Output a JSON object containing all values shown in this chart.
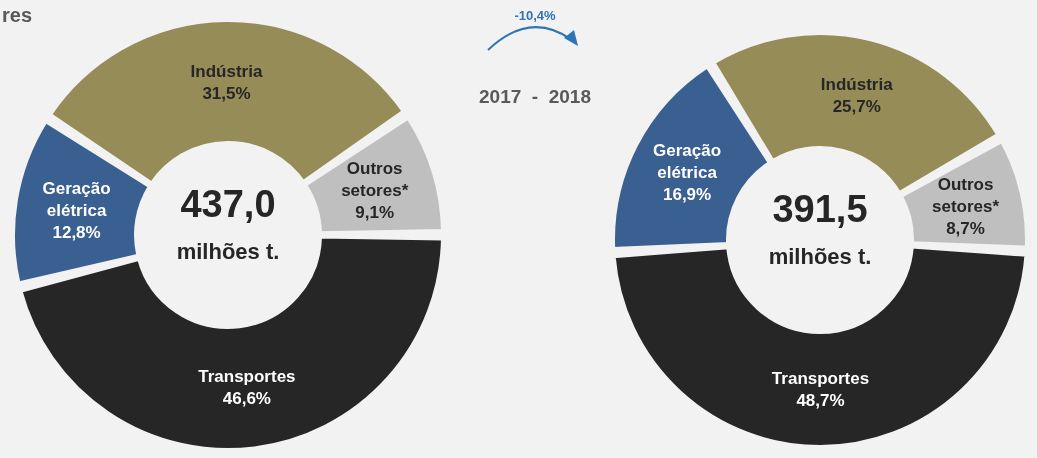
{
  "chart_data": [
    {
      "type": "donut",
      "title": "res",
      "categories": [
        "Indústria",
        "Outros setores*",
        "Transportes",
        "Geração elétrica"
      ],
      "values": [
        31.5,
        9.1,
        46.6,
        12.8
      ],
      "colors": [
        "#958c57",
        "#bfbfbf",
        "#262626",
        "#3a5f91"
      ],
      "value_labels": [
        "31,5%",
        "9,1%",
        "46,6%",
        "12,8%"
      ],
      "annotations": [
        "437,0",
        "milhões t."
      ]
    },
    {
      "type": "donut",
      "categories": [
        "Indústria",
        "Outros setores*",
        "Transportes",
        "Geração elétrica"
      ],
      "values": [
        25.7,
        8.7,
        48.7,
        16.9
      ],
      "colors": [
        "#958c57",
        "#bfbfbf",
        "#262626",
        "#3a5f91"
      ],
      "value_labels": [
        "25,7%",
        "8,7%",
        "48,7%",
        "16,9%"
      ],
      "annotations": [
        "391,5",
        "milhões t.",
        "-10,4%",
        "2017  -  2018"
      ]
    }
  ]
}
